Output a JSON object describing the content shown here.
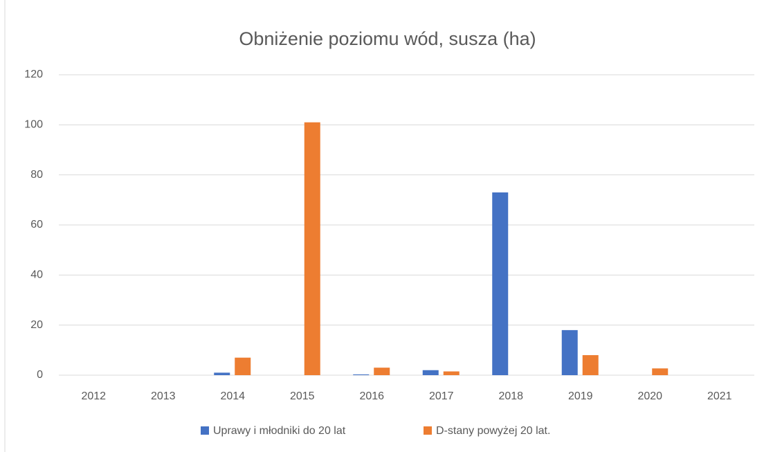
{
  "chart_data": {
    "type": "bar",
    "title": "Obniżenie poziomu wód, susza (ha)",
    "categories": [
      "2012",
      "2013",
      "2014",
      "2015",
      "2016",
      "2017",
      "2018",
      "2019",
      "2020",
      "2021"
    ],
    "series": [
      {
        "name": "Uprawy i młodniki do 20 lat",
        "color": "#4472c4",
        "values": [
          0,
          0,
          1,
          0,
          0.3,
          2,
          73,
          18,
          0,
          0
        ]
      },
      {
        "name": "D-stany powyżej 20 lat.",
        "color": "#ed7d31",
        "values": [
          0,
          0,
          7,
          101,
          3,
          1.5,
          0,
          8,
          2.7,
          0
        ]
      }
    ],
    "ylim": [
      0,
      120
    ],
    "yticks": [
      0,
      20,
      40,
      60,
      80,
      100,
      120
    ],
    "grid": true,
    "legend": "bottom"
  }
}
